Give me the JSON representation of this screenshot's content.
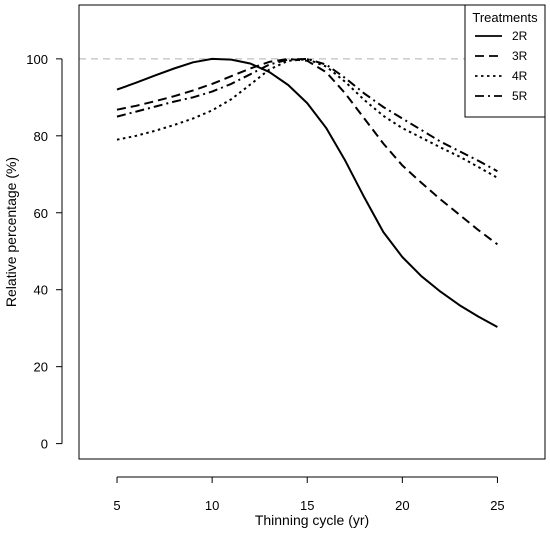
{
  "chart_data": {
    "type": "line",
    "title": "",
    "xlabel": "Thinning cycle (yr)",
    "ylabel": "Relative percentage (%)",
    "xlim": [
      3,
      27.5
    ],
    "ylim": [
      -4,
      114
    ],
    "xticks": [
      5,
      10,
      15,
      20,
      25
    ],
    "yticks": [
      0,
      20,
      40,
      60,
      80,
      100
    ],
    "reference_line": {
      "y": 100,
      "color": "#b0b0b0",
      "style": "dashed"
    },
    "legend": {
      "title": "Treatments",
      "position": "top-right"
    },
    "grid": false,
    "series": [
      {
        "name": "2R",
        "style": "solid",
        "x": [
          5,
          6,
          7,
          8,
          9,
          10,
          11,
          12,
          13,
          14,
          15,
          16,
          17,
          18,
          19,
          20,
          21,
          22,
          23,
          24,
          25
        ],
        "y": [
          92,
          93.8,
          95.7,
          97.5,
          99.1,
          100,
          99.8,
          98.8,
          96.6,
          93.2,
          88.5,
          82,
          73.5,
          64,
          55,
          48.5,
          43.5,
          39.5,
          36,
          33,
          30.3
        ]
      },
      {
        "name": "3R",
        "style": "dashed",
        "x": [
          5,
          6,
          7,
          8,
          9,
          10,
          11,
          12,
          13,
          14,
          15,
          16,
          17,
          18,
          19,
          20,
          21,
          22,
          23,
          24,
          25
        ],
        "y": [
          86.8,
          87.8,
          89,
          90.3,
          91.8,
          93.5,
          95.5,
          97.5,
          99.2,
          100,
          99.5,
          96.5,
          91,
          84.5,
          78,
          72.3,
          67.8,
          63.5,
          59.5,
          55.5,
          51.8
        ]
      },
      {
        "name": "4R",
        "style": "dotted",
        "x": [
          5,
          6,
          7,
          8,
          9,
          10,
          11,
          12,
          13,
          14,
          15,
          16,
          17,
          18,
          19,
          20,
          21,
          22,
          23,
          24,
          25
        ],
        "y": [
          79,
          80,
          81.3,
          82.8,
          84.5,
          86.6,
          89.5,
          93.3,
          97.2,
          99.5,
          99.9,
          98,
          94,
          89.3,
          85.2,
          82,
          79.5,
          77,
          74.6,
          71.9,
          69.1
        ]
      },
      {
        "name": "5R",
        "style": "dashdot",
        "x": [
          5,
          6,
          7,
          8,
          9,
          10,
          11,
          12,
          13,
          14,
          15,
          16,
          17,
          18,
          19,
          20,
          21,
          22,
          23,
          24,
          25
        ],
        "y": [
          85,
          86.3,
          87.6,
          88.9,
          90,
          91.5,
          93.5,
          96,
          98.5,
          99.8,
          100,
          98.5,
          95,
          91,
          87.5,
          84.5,
          81.5,
          78.5,
          76,
          73.5,
          70.8
        ]
      }
    ]
  }
}
